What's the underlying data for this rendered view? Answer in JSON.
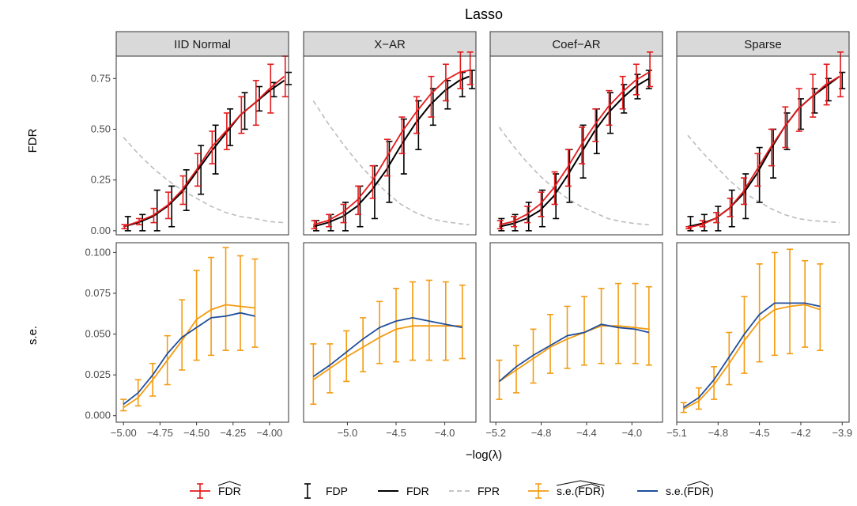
{
  "title": "Lasso",
  "xlabel": "−log(λ)",
  "row_labels": [
    "FDR",
    "s.e."
  ],
  "colors": {
    "fdr_hat": "#e41a1c",
    "fdp": "#000000",
    "fdr": "#000000",
    "fpr": "#bdbdbd",
    "se_hat": "#f39c12",
    "se_true": "#1f4e9c"
  },
  "legend": [
    {
      "key": "fdr_hat",
      "label": "FDR",
      "hat": true
    },
    {
      "key": "fdp",
      "label": "FDP"
    },
    {
      "key": "fdr",
      "label": "FDR"
    },
    {
      "key": "fpr",
      "label": "FPR"
    },
    {
      "key": "se_hat",
      "label": "s.e.(FDR)",
      "hat": true
    },
    {
      "key": "se_true",
      "label": "s.e.(FDR)",
      "hat": false
    }
  ],
  "y_axes": {
    "top": {
      "ylim": [
        -0.02,
        0.86
      ],
      "ticks": [
        0.0,
        0.25,
        0.5,
        0.75
      ],
      "tick_labels": [
        "0.00",
        "0.25",
        "0.50",
        "0.75"
      ]
    },
    "bottom": {
      "ylim": [
        -0.004,
        0.106
      ],
      "ticks": [
        0.0,
        0.025,
        0.05,
        0.075,
        0.1
      ],
      "tick_labels": [
        "0.000",
        "0.025",
        "0.050",
        "0.075",
        "0.100"
      ]
    }
  },
  "chart_data": [
    {
      "type": "line",
      "panel": "IID Normal",
      "xlim": [
        -5.05,
        -3.87
      ],
      "x_ticks": [
        -5.0,
        -4.75,
        -4.5,
        -4.25,
        -4.0
      ],
      "x_tick_labels": [
        "−5.00",
        "−4.75",
        "−4.50",
        "−4.25",
        "−4.00"
      ],
      "x": [
        -5.0,
        -4.9,
        -4.8,
        -4.7,
        -4.6,
        -4.5,
        -4.4,
        -4.3,
        -4.2,
        -4.1,
        -4.0,
        -3.9
      ],
      "fdr": [
        0.02,
        0.04,
        0.07,
        0.12,
        0.19,
        0.29,
        0.39,
        0.48,
        0.57,
        0.63,
        0.69,
        0.74
      ],
      "fdr_hat": [
        0.02,
        0.045,
        0.075,
        0.125,
        0.2,
        0.3,
        0.41,
        0.49,
        0.57,
        0.63,
        0.7,
        0.76
      ],
      "fdr_hat_lo": [
        0.01,
        0.03,
        0.04,
        0.06,
        0.13,
        0.22,
        0.33,
        0.4,
        0.48,
        0.52,
        0.58,
        0.66
      ],
      "fdr_hat_hi": [
        0.03,
        0.06,
        0.11,
        0.19,
        0.27,
        0.38,
        0.49,
        0.58,
        0.66,
        0.74,
        0.82,
        0.86
      ],
      "fdp_x": [
        -4.97,
        -4.87,
        -4.77,
        -4.67,
        -4.57,
        -4.47,
        -4.37,
        -4.27,
        -4.17,
        -4.07,
        -3.97,
        -3.87
      ],
      "fdp_lo": [
        0.0,
        0.0,
        0.0,
        0.02,
        0.1,
        0.18,
        0.28,
        0.42,
        0.5,
        0.59,
        0.66,
        0.72
      ],
      "fdp_hi": [
        0.07,
        0.08,
        0.2,
        0.22,
        0.3,
        0.42,
        0.52,
        0.6,
        0.68,
        0.71,
        0.73,
        0.78
      ],
      "fpr": [
        0.46,
        0.38,
        0.31,
        0.25,
        0.2,
        0.16,
        0.12,
        0.09,
        0.07,
        0.06,
        0.045,
        0.04
      ],
      "se_hat": [
        0.005,
        0.011,
        0.022,
        0.034,
        0.046,
        0.059,
        0.065,
        0.068,
        0.067,
        0.066
      ],
      "se_hat_lo": [
        0.003,
        0.006,
        0.012,
        0.019,
        0.028,
        0.034,
        0.037,
        0.04,
        0.04,
        0.042
      ],
      "se_hat_hi": [
        0.01,
        0.022,
        0.032,
        0.049,
        0.071,
        0.089,
        0.097,
        0.103,
        0.098,
        0.096
      ],
      "se_true": [
        0.007,
        0.014,
        0.025,
        0.038,
        0.048,
        0.054,
        0.06,
        0.061,
        0.063,
        0.061
      ],
      "se_x": [
        -5.0,
        -4.9,
        -4.8,
        -4.7,
        -4.6,
        -4.5,
        -4.4,
        -4.3,
        -4.2,
        -4.1
      ]
    },
    {
      "type": "line",
      "panel": "X−AR",
      "xlim": [
        -5.45,
        -3.68
      ],
      "x_ticks": [
        -5.0,
        -4.5,
        -4.0
      ],
      "x_tick_labels": [
        "−5.0",
        "−4.5",
        "−4.0"
      ],
      "x": [
        -5.35,
        -5.2,
        -5.05,
        -4.9,
        -4.75,
        -4.6,
        -4.45,
        -4.3,
        -4.15,
        -4.0,
        -3.85,
        -3.75
      ],
      "fdr": [
        0.02,
        0.04,
        0.07,
        0.12,
        0.2,
        0.3,
        0.42,
        0.53,
        0.62,
        0.69,
        0.74,
        0.76
      ],
      "fdr_hat": [
        0.03,
        0.05,
        0.09,
        0.15,
        0.24,
        0.36,
        0.48,
        0.58,
        0.67,
        0.74,
        0.78,
        0.79
      ],
      "fdr_hat_lo": [
        0.01,
        0.02,
        0.04,
        0.08,
        0.16,
        0.27,
        0.38,
        0.48,
        0.56,
        0.64,
        0.7,
        0.72
      ],
      "fdr_hat_hi": [
        0.05,
        0.08,
        0.13,
        0.22,
        0.32,
        0.45,
        0.56,
        0.66,
        0.76,
        0.82,
        0.88,
        0.88
      ],
      "fdp_x": [
        -5.32,
        -5.17,
        -5.02,
        -4.87,
        -4.72,
        -4.57,
        -4.42,
        -4.27,
        -4.12,
        -3.97,
        -3.82,
        -3.72
      ],
      "fdp_lo": [
        0.0,
        0.0,
        0.0,
        0.02,
        0.06,
        0.14,
        0.28,
        0.4,
        0.52,
        0.6,
        0.66,
        0.7
      ],
      "fdp_hi": [
        0.05,
        0.08,
        0.14,
        0.22,
        0.32,
        0.44,
        0.55,
        0.64,
        0.7,
        0.74,
        0.78,
        0.79
      ],
      "fpr": [
        0.64,
        0.53,
        0.43,
        0.34,
        0.26,
        0.19,
        0.13,
        0.09,
        0.06,
        0.045,
        0.035,
        0.03
      ],
      "se_hat": [
        0.022,
        0.029,
        0.036,
        0.042,
        0.048,
        0.053,
        0.055,
        0.055,
        0.055,
        0.055
      ],
      "se_hat_lo": [
        0.007,
        0.014,
        0.021,
        0.027,
        0.032,
        0.033,
        0.034,
        0.034,
        0.034,
        0.035
      ],
      "se_hat_hi": [
        0.044,
        0.044,
        0.052,
        0.06,
        0.07,
        0.078,
        0.082,
        0.083,
        0.082,
        0.08
      ],
      "se_true": [
        0.024,
        0.031,
        0.039,
        0.047,
        0.054,
        0.058,
        0.06,
        0.058,
        0.056,
        0.054
      ],
      "se_x": [
        -5.35,
        -5.18,
        -5.01,
        -4.84,
        -4.67,
        -4.5,
        -4.33,
        -4.16,
        -3.99,
        -3.82
      ]
    },
    {
      "type": "line",
      "panel": "Coef−AR",
      "xlim": [
        -5.25,
        -3.73
      ],
      "x_ticks": [
        -5.2,
        -4.8,
        -4.4,
        -4.0
      ],
      "x_tick_labels": [
        "−5.2",
        "−4.8",
        "−4.4",
        "−4.0"
      ],
      "x": [
        -5.17,
        -5.05,
        -4.93,
        -4.81,
        -4.69,
        -4.57,
        -4.45,
        -4.33,
        -4.21,
        -4.09,
        -3.97,
        -3.85
      ],
      "fdr": [
        0.02,
        0.035,
        0.06,
        0.1,
        0.17,
        0.27,
        0.38,
        0.49,
        0.58,
        0.65,
        0.71,
        0.75
      ],
      "fdr_hat": [
        0.03,
        0.045,
        0.08,
        0.13,
        0.21,
        0.31,
        0.42,
        0.52,
        0.61,
        0.68,
        0.74,
        0.78
      ],
      "fdr_hat_lo": [
        0.01,
        0.02,
        0.04,
        0.07,
        0.13,
        0.22,
        0.33,
        0.44,
        0.52,
        0.6,
        0.67,
        0.71
      ],
      "fdr_hat_hi": [
        0.05,
        0.07,
        0.12,
        0.19,
        0.29,
        0.4,
        0.51,
        0.6,
        0.69,
        0.76,
        0.82,
        0.88
      ],
      "fdp_x": [
        -5.15,
        -5.03,
        -4.91,
        -4.79,
        -4.67,
        -4.55,
        -4.43,
        -4.31,
        -4.19,
        -4.07,
        -3.95,
        -3.85
      ],
      "fdp_lo": [
        0.0,
        0.0,
        0.0,
        0.02,
        0.06,
        0.14,
        0.26,
        0.38,
        0.48,
        0.58,
        0.65,
        0.7
      ],
      "fdp_hi": [
        0.06,
        0.08,
        0.14,
        0.2,
        0.28,
        0.4,
        0.52,
        0.6,
        0.68,
        0.72,
        0.77,
        0.79
      ],
      "fpr": [
        0.51,
        0.42,
        0.34,
        0.27,
        0.21,
        0.16,
        0.12,
        0.09,
        0.06,
        0.045,
        0.035,
        0.03
      ],
      "se_hat": [
        0.021,
        0.028,
        0.035,
        0.042,
        0.047,
        0.051,
        0.055,
        0.055,
        0.054,
        0.053
      ],
      "se_hat_lo": [
        0.01,
        0.014,
        0.02,
        0.026,
        0.029,
        0.031,
        0.032,
        0.032,
        0.032,
        0.031
      ],
      "se_hat_hi": [
        0.034,
        0.043,
        0.053,
        0.062,
        0.067,
        0.073,
        0.078,
        0.081,
        0.081,
        0.079
      ],
      "se_true": [
        0.021,
        0.03,
        0.037,
        0.043,
        0.049,
        0.051,
        0.056,
        0.054,
        0.053,
        0.051
      ],
      "se_x": [
        -5.17,
        -5.02,
        -4.87,
        -4.72,
        -4.57,
        -4.42,
        -4.27,
        -4.12,
        -3.97,
        -3.85
      ]
    },
    {
      "type": "line",
      "panel": "Sparse",
      "xlim": [
        -5.1,
        -3.85
      ],
      "x_ticks": [
        -5.1,
        -4.8,
        -4.5,
        -4.2,
        -3.9
      ],
      "x_tick_labels": [
        "−5.1",
        "−4.8",
        "−4.5",
        "−4.2",
        "−3.9"
      ],
      "x": [
        -5.02,
        -4.92,
        -4.82,
        -4.72,
        -4.62,
        -4.52,
        -4.42,
        -4.32,
        -4.22,
        -4.12,
        -4.02,
        -3.92
      ],
      "fdr": [
        0.02,
        0.035,
        0.06,
        0.11,
        0.18,
        0.28,
        0.4,
        0.51,
        0.6,
        0.66,
        0.71,
        0.76
      ],
      "fdr_hat": [
        0.015,
        0.03,
        0.06,
        0.11,
        0.19,
        0.3,
        0.41,
        0.51,
        0.6,
        0.66,
        0.72,
        0.76
      ],
      "fdr_hat_lo": [
        0.01,
        0.02,
        0.04,
        0.07,
        0.13,
        0.22,
        0.32,
        0.41,
        0.49,
        0.56,
        0.62,
        0.66
      ],
      "fdr_hat_hi": [
        0.02,
        0.05,
        0.09,
        0.16,
        0.26,
        0.38,
        0.5,
        0.61,
        0.7,
        0.77,
        0.82,
        0.88
      ],
      "fdp_x": [
        -5.0,
        -4.9,
        -4.8,
        -4.7,
        -4.6,
        -4.5,
        -4.4,
        -4.3,
        -4.2,
        -4.1,
        -4.0,
        -3.9
      ],
      "fdp_lo": [
        0.0,
        0.0,
        0.0,
        0.02,
        0.06,
        0.14,
        0.26,
        0.4,
        0.5,
        0.58,
        0.64,
        0.7
      ],
      "fdp_hi": [
        0.07,
        0.08,
        0.12,
        0.2,
        0.28,
        0.41,
        0.5,
        0.58,
        0.65,
        0.7,
        0.75,
        0.78
      ],
      "fpr": [
        0.47,
        0.39,
        0.32,
        0.25,
        0.19,
        0.15,
        0.11,
        0.08,
        0.06,
        0.05,
        0.045,
        0.04
      ],
      "se_hat": [
        0.004,
        0.009,
        0.019,
        0.032,
        0.046,
        0.058,
        0.065,
        0.067,
        0.068,
        0.065
      ],
      "se_hat_lo": [
        0.002,
        0.004,
        0.01,
        0.019,
        0.026,
        0.033,
        0.037,
        0.038,
        0.042,
        0.04
      ],
      "se_hat_hi": [
        0.008,
        0.017,
        0.03,
        0.051,
        0.073,
        0.093,
        0.1,
        0.102,
        0.095,
        0.093
      ],
      "se_true": [
        0.005,
        0.011,
        0.022,
        0.036,
        0.05,
        0.062,
        0.069,
        0.069,
        0.069,
        0.067
      ],
      "se_x": [
        -5.05,
        -4.94,
        -4.83,
        -4.72,
        -4.61,
        -4.5,
        -4.39,
        -4.28,
        -4.17,
        -4.06
      ]
    }
  ]
}
